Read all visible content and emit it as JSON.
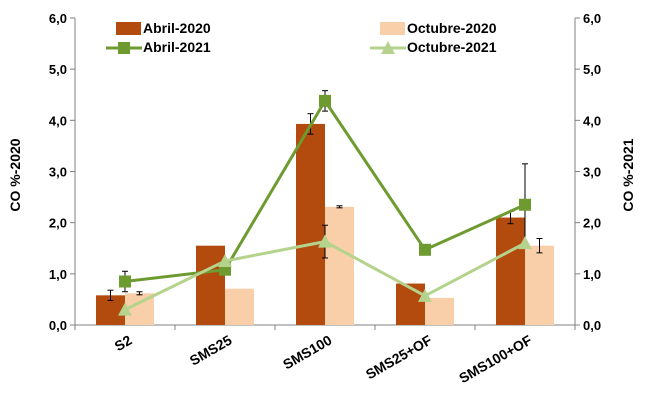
{
  "chart_data": {
    "type": "bar",
    "categories": [
      "S2",
      "SMS25",
      "SMS100",
      "SMS25+OF",
      "SMS100+OF"
    ],
    "ylabel_left": "CO %-2020",
    "ylabel_right": "CO %-2021",
    "ylim": [
      0,
      6
    ],
    "yticks": [
      "0,0",
      "1,0",
      "2,0",
      "3,0",
      "4,0",
      "5,0",
      "6,0"
    ],
    "grid": false,
    "legend_position": "top",
    "bar_series": [
      {
        "name": "Abril-2020",
        "color": "#b34a0e",
        "values": [
          0.58,
          1.55,
          3.93,
          0.81,
          2.1
        ],
        "errors": [
          0.1,
          null,
          0.2,
          null,
          0.12
        ]
      },
      {
        "name": "Octubre-2020",
        "color": "#f9cfaa",
        "values": [
          0.62,
          0.71,
          2.31,
          0.53,
          1.55
        ],
        "errors": [
          0.03,
          null,
          0.02,
          null,
          0.14
        ]
      }
    ],
    "line_series": [
      {
        "name": "Abril-2021",
        "color": "#6e9b2f",
        "marker": "square",
        "values": [
          0.85,
          1.08,
          4.38,
          1.47,
          2.35
        ],
        "errors": [
          0.2,
          null,
          0.2,
          null,
          0.8
        ]
      },
      {
        "name": "Octubre-2021",
        "color": "#b5d38c",
        "marker": "triangle",
        "values": [
          0.3,
          1.25,
          1.63,
          0.57,
          1.6
        ],
        "errors": [
          null,
          null,
          0.32,
          null,
          null
        ]
      }
    ]
  }
}
